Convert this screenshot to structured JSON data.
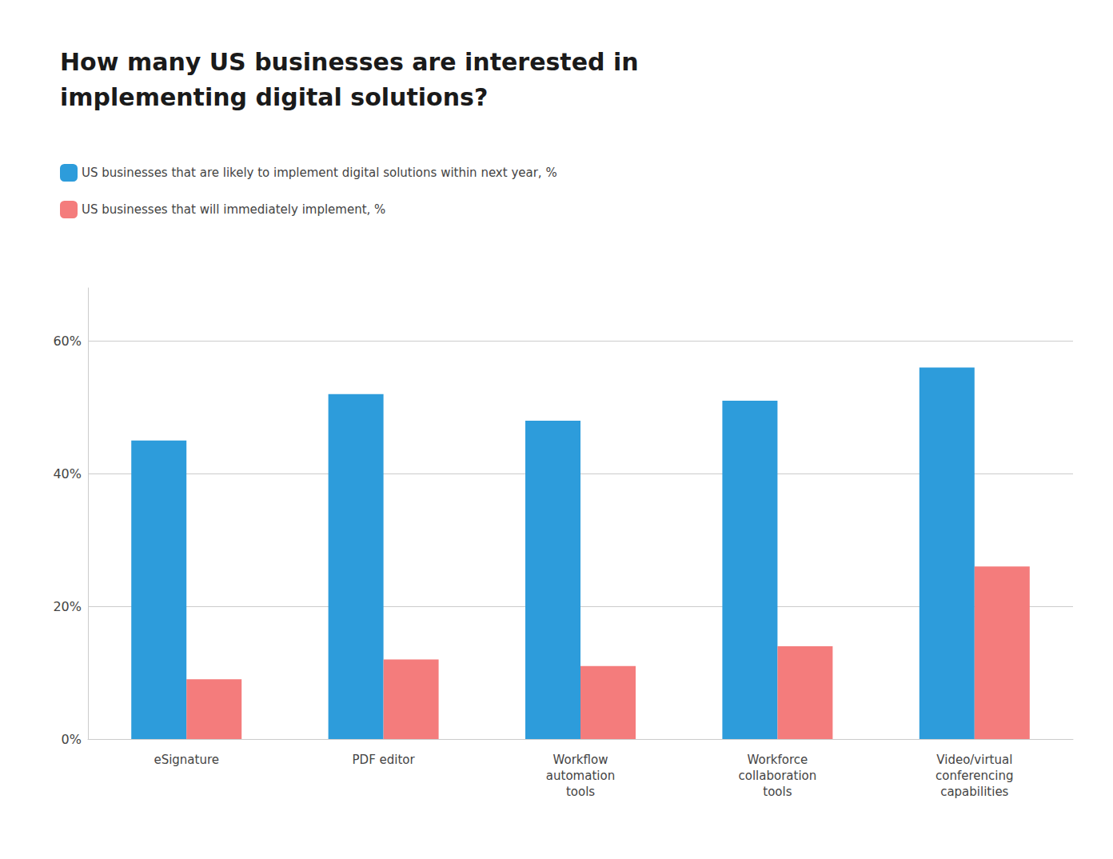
{
  "chart_data": {
    "type": "bar",
    "title": "How many US businesses are interested in\nimplementing digital solutions?",
    "categories": [
      "eSignature",
      "PDF editor",
      "Workflow\nautomation\ntools",
      "Workforce\ncollaboration\ntools",
      "Video/virtual\nconferencing\ncapabilities"
    ],
    "series": [
      {
        "name": "US businesses that are likely to implement digital solutions within next year, %",
        "color": "#2D9CDB",
        "values": [
          45,
          52,
          48,
          51,
          56
        ]
      },
      {
        "name": "US businesses that will immediately implement, %",
        "color": "#F47C7C",
        "values": [
          9,
          12,
          11,
          14,
          26
        ]
      }
    ],
    "ylim": [
      0,
      68
    ],
    "yticks": [
      {
        "value": 0,
        "label": "0%"
      },
      {
        "value": 20,
        "label": "20%"
      },
      {
        "value": 40,
        "label": "40%"
      },
      {
        "value": 60,
        "label": "60%"
      }
    ],
    "grid": true,
    "legend": "upper left"
  }
}
